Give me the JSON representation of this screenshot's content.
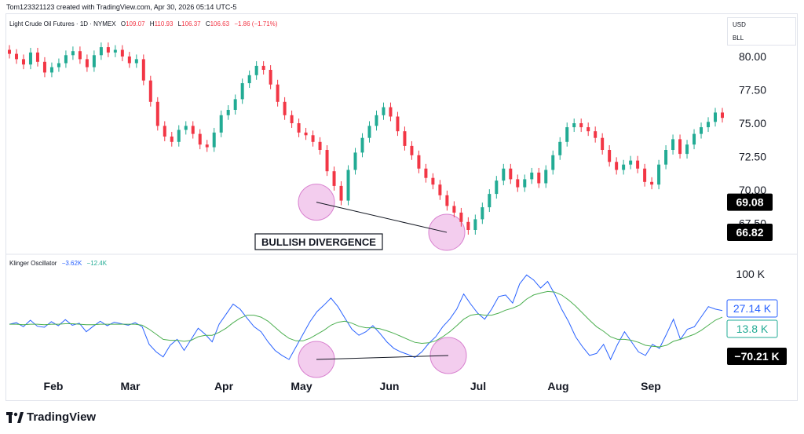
{
  "header": {
    "attribution": "Tom123321123 created with TradingView.com, Apr 30, 2026 05:14 UTC-5"
  },
  "main_pane": {
    "symbol_title": "Light Crude Oil Futures · 1D · NYMEX",
    "ohlc": {
      "o_label": "O",
      "o_value": "109.07",
      "h_label": "H",
      "h_value": "110.93",
      "l_label": "L",
      "l_value": "106.37",
      "c_label": "C",
      "c_value": "106.63",
      "change": "−1.86 (−1.71%)"
    },
    "currency": "USD",
    "unit": "BLL",
    "price_ticks": [
      "80.00",
      "77.50",
      "75.00",
      "72.50",
      "70.00",
      "67.50"
    ],
    "price_markers": [
      "69.08",
      "66.82"
    ],
    "annotation": "BULLISH DIVERGENCE"
  },
  "indicator_pane": {
    "name": "Klinger Oscillator",
    "value_1": "−3.62K",
    "value_2": "−12.4K",
    "axis_ticks": [
      "100 K"
    ],
    "markers": [
      {
        "text": "27.14 K",
        "color": "#2962ff"
      },
      {
        "text": "13.8 K",
        "color": "#22ab94"
      },
      {
        "text": "−70.21 K",
        "color": "#000000"
      }
    ]
  },
  "time_axis": [
    "Feb",
    "Mar",
    "Apr",
    "May",
    "Jun",
    "Jul",
    "Aug",
    "Sep"
  ],
  "branding": {
    "logo_text": "TradingView"
  },
  "colors": {
    "up": "#22ab94",
    "down": "#f23645",
    "klinger": "#2962ff",
    "signal": "#4caf50",
    "highlight": "#f3cdee"
  },
  "chart_data": [
    {
      "type": "candlestick",
      "title": "Light Crude Oil Futures · 1D · NYMEX",
      "ylim": [
        66.2,
        80.8
      ],
      "x": [
        "Feb",
        "Mar",
        "Apr",
        "May",
        "Jun",
        "Jul",
        "Aug",
        "Sep"
      ],
      "close_path": [
        80.2,
        79.8,
        79.4,
        80.3,
        79.6,
        78.8,
        79.2,
        79.5,
        80.1,
        80.4,
        79.8,
        79.2,
        80.1,
        80.7,
        80.3,
        80.5,
        80.0,
        79.5,
        79.8,
        78.2,
        76.6,
        74.8,
        74.0,
        73.6,
        74.5,
        74.8,
        74.2,
        73.4,
        73.2,
        74.3,
        75.6,
        76.0,
        76.8,
        78.0,
        78.6,
        79.3,
        79.0,
        77.9,
        76.6,
        75.6,
        75.0,
        74.3,
        74.1,
        73.6,
        73.0,
        71.4,
        70.3,
        69.2,
        71.5,
        72.8,
        73.9,
        74.8,
        75.6,
        76.2,
        75.5,
        74.4,
        73.3,
        72.6,
        71.6,
        70.9,
        70.4,
        69.6,
        68.8,
        68.3,
        67.6,
        67.0,
        67.8,
        68.7,
        69.7,
        70.7,
        71.6,
        70.8,
        70.2,
        70.8,
        71.3,
        70.5,
        71.5,
        72.6,
        73.6,
        74.7,
        75.0,
        74.7,
        74.4,
        73.9,
        73.0,
        72.1,
        71.5,
        71.9,
        72.2,
        71.6,
        70.6,
        70.4,
        71.9,
        73.0,
        73.8,
        72.7,
        73.4,
        74.2,
        74.7,
        75.1,
        75.8,
        75.4
      ],
      "divergence_lows": [
        69.08,
        66.82
      ]
    },
    {
      "type": "line",
      "title": "Klinger Oscillator",
      "ylim": [
        -80,
        110
      ],
      "series": [
        {
          "name": "Klinger Oscillator",
          "values": [
            0,
            3,
            -5,
            8,
            -4,
            -6,
            5,
            -3,
            9,
            -2,
            2,
            -15,
            -4,
            6,
            -3,
            4,
            1,
            -2,
            3,
            -5,
            -40,
            -55,
            -65,
            -42,
            -30,
            -52,
            -30,
            -8,
            -20,
            -35,
            0,
            20,
            40,
            30,
            12,
            -5,
            -15,
            -35,
            -52,
            -62,
            -70,
            -45,
            -20,
            5,
            25,
            38,
            52,
            35,
            12,
            -10,
            -22,
            -15,
            -3,
            -18,
            -35,
            -48,
            -55,
            -60,
            -66,
            -55,
            -38,
            -25,
            -5,
            10,
            30,
            60,
            40,
            22,
            10,
            30,
            55,
            58,
            42,
            80,
            98,
            88,
            72,
            85,
            60,
            30,
            5,
            -25,
            -45,
            -62,
            -58,
            -40,
            -70,
            -40,
            -15,
            -35,
            -55,
            -62,
            -40,
            -48,
            -20,
            10,
            -30,
            -10,
            -5,
            15,
            35,
            30,
            27
          ]
        },
        {
          "name": "signal",
          "values": [
            0,
            0,
            -1,
            0,
            0,
            -1,
            0,
            0,
            1,
            1,
            0,
            -1,
            -1,
            0,
            0,
            0,
            0,
            0,
            0,
            -2,
            -10,
            -20,
            -30,
            -32,
            -32,
            -34,
            -32,
            -25,
            -22,
            -22,
            -16,
            -8,
            3,
            12,
            18,
            18,
            14,
            6,
            -6,
            -18,
            -28,
            -33,
            -33,
            -28,
            -20,
            -12,
            -2,
            4,
            6,
            2,
            -4,
            -7,
            -7,
            -9,
            -13,
            -18,
            -24,
            -30,
            -36,
            -38,
            -37,
            -33,
            -25,
            -15,
            -3,
            10,
            18,
            20,
            18,
            18,
            22,
            28,
            32,
            38,
            50,
            58,
            62,
            65,
            64,
            58,
            48,
            36,
            22,
            8,
            -5,
            -14,
            -25,
            -30,
            -30,
            -32,
            -36,
            -42,
            -44,
            -45,
            -42,
            -34,
            -30,
            -25,
            -20,
            -12,
            -2,
            8,
            14
          ]
        }
      ]
    }
  ]
}
